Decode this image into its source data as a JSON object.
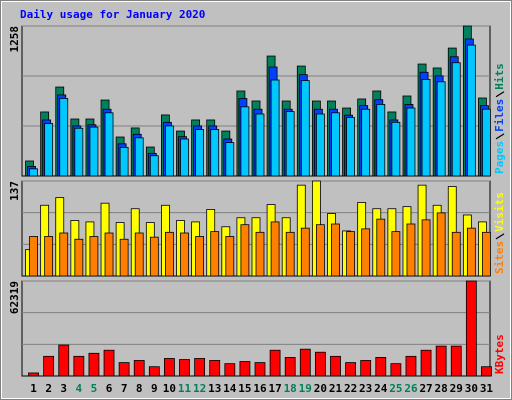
{
  "chart_data": [
    {
      "type": "bar",
      "title": "Daily usage for January 2020",
      "ylim": [
        0,
        1258
      ],
      "yticks": [
        1258
      ],
      "series": [
        {
          "name": "Hits",
          "color": "#00805c",
          "values": [
            126,
            537,
            746,
            478,
            478,
            637,
            327,
            403,
            243,
            512,
            377,
            470,
            470,
            377,
            713,
            629,
            1006,
            629,
            922,
            629,
            629,
            570,
            646,
            713,
            537,
            671,
            939,
            906,
            1073,
            1258,
            654
          ]
        },
        {
          "name": "Files",
          "color": "#0040ff",
          "values": [
            80,
            470,
            680,
            420,
            430,
            560,
            270,
            350,
            190,
            450,
            330,
            420,
            420,
            310,
            650,
            560,
            914,
            560,
            850,
            560,
            560,
            510,
            590,
            640,
            470,
            600,
            870,
            840,
            1000,
            1149,
            590
          ]
        },
        {
          "name": "Pages",
          "color": "#00c8ff",
          "values": [
            60,
            440,
            650,
            400,
            410,
            530,
            240,
            320,
            170,
            420,
            310,
            390,
            390,
            280,
            580,
            520,
            805,
            540,
            800,
            520,
            530,
            490,
            560,
            600,
            450,
            570,
            810,
            790,
            950,
            1098,
            560
          ]
        }
      ]
    },
    {
      "type": "bar",
      "ylim": [
        0,
        137
      ],
      "yticks": [
        137
      ],
      "series": [
        {
          "name": "Visits",
          "color": "#ffff00",
          "values": [
            38,
            102,
            113,
            80,
            78,
            105,
            77,
            97,
            77,
            102,
            80,
            78,
            96,
            71,
            84,
            84,
            103,
            84,
            131,
            137,
            90,
            65,
            106,
            97,
            97,
            100,
            131,
            102,
            129,
            88,
            78
          ]
        },
        {
          "name": "Sites",
          "color": "#ff8000",
          "values": [
            57,
            57,
            62,
            53,
            57,
            62,
            53,
            62,
            56,
            63,
            62,
            57,
            64,
            57,
            74,
            63,
            78,
            63,
            69,
            74,
            75,
            64,
            68,
            82,
            64,
            75,
            81,
            91,
            63,
            69,
            63
          ]
        }
      ]
    },
    {
      "type": "bar",
      "ylim": [
        0,
        62319
      ],
      "yticks": [
        62319
      ],
      "categories": [
        "1",
        "2",
        "3",
        "4",
        "5",
        "6",
        "7",
        "8",
        "9",
        "10",
        "11",
        "12",
        "13",
        "14",
        "15",
        "16",
        "17",
        "18",
        "19",
        "20",
        "21",
        "22",
        "23",
        "24",
        "25",
        "26",
        "27",
        "28",
        "29",
        "30",
        "31"
      ],
      "category_colors": [
        "#000000",
        "#000000",
        "#000000",
        "#00805c",
        "#00805c",
        "#000000",
        "#000000",
        "#000000",
        "#000000",
        "#000000",
        "#00805c",
        "#00805c",
        "#000000",
        "#000000",
        "#000000",
        "#000000",
        "#000000",
        "#00805c",
        "#00805c",
        "#000000",
        "#000000",
        "#000000",
        "#000000",
        "#000000",
        "#00805c",
        "#00805c",
        "#000000",
        "#000000",
        "#000000",
        "#000000",
        "#000000"
      ],
      "series": [
        {
          "name": "KBytes",
          "color": "#ff0000",
          "values": [
            2000,
            12900,
            20300,
            12900,
            14900,
            16900,
            8800,
            10200,
            6100,
            11500,
            10800,
            11500,
            10200,
            8100,
            9500,
            8800,
            16900,
            12200,
            17600,
            15600,
            12900,
            8800,
            10200,
            12200,
            8100,
            12900,
            16900,
            19600,
            19600,
            62319,
            6100
          ]
        }
      ]
    }
  ]
}
